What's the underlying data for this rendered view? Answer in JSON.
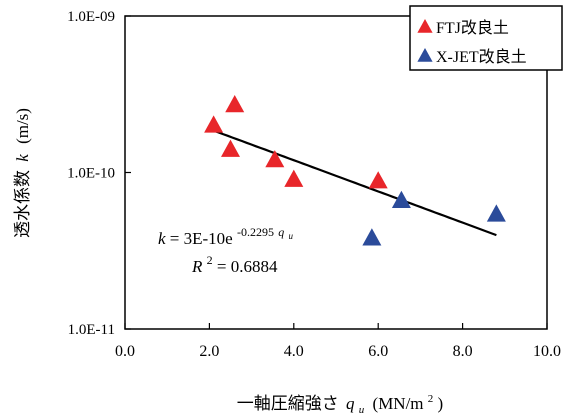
{
  "chart_data": {
    "type": "scatter",
    "title": "",
    "x_scale": "linear",
    "y_scale": "log",
    "xlim": [
      0,
      10
    ],
    "ylim": [
      1e-11,
      1e-09
    ],
    "x_ticks": [
      0,
      2,
      4,
      6,
      8,
      10
    ],
    "x_tick_labels": [
      "0.0",
      "2.0",
      "4.0",
      "6.0",
      "8.0",
      "10.0"
    ],
    "y_ticks": [
      1e-11,
      1e-10,
      1e-09
    ],
    "y_tick_labels": [
      "1.0E-11",
      "1.0E-10",
      "1.0E-09"
    ],
    "xlabel": {
      "prefix": "一軸圧縮強さ",
      "symbol": "q",
      "subscript": "u",
      "unit_open": "(MN/m",
      "unit_sup": "2",
      "unit_close": ")"
    },
    "ylabel": {
      "prefix": "透水係数",
      "symbol": "k",
      "unit": "(m/s)"
    },
    "grid": false,
    "legend_position": "top-right",
    "series": [
      {
        "name": "FTJ改良土",
        "color": "#e8262a",
        "marker": "triangle",
        "points": [
          {
            "x": 2.1,
            "y": 2e-10
          },
          {
            "x": 2.5,
            "y": 1.4e-10
          },
          {
            "x": 2.6,
            "y": 2.7e-10
          },
          {
            "x": 3.55,
            "y": 1.2e-10
          },
          {
            "x": 4.0,
            "y": 9e-11
          },
          {
            "x": 6.0,
            "y": 8.8e-11
          }
        ]
      },
      {
        "name": "X-JET改良土",
        "color": "#2b4b9a",
        "marker": "triangle",
        "points": [
          {
            "x": 5.85,
            "y": 3.8e-11
          },
          {
            "x": 6.55,
            "y": 6.6e-11
          },
          {
            "x": 8.8,
            "y": 5.4e-11
          }
        ]
      }
    ],
    "trendline": {
      "type": "exponential",
      "x_start": 2.1,
      "x_end": 8.8,
      "coef": 3e-10,
      "rate": -0.2295,
      "color": "#000000"
    },
    "annotations": {
      "equation": {
        "lhs": "k",
        "eq": " = 3E-10e",
        "exponent": "-0.2295",
        "exp_symbol": "q",
        "exp_sub": "u"
      },
      "r_squared": {
        "symbol": "R",
        "sup": "2",
        "value": " = 0.6884"
      }
    }
  }
}
